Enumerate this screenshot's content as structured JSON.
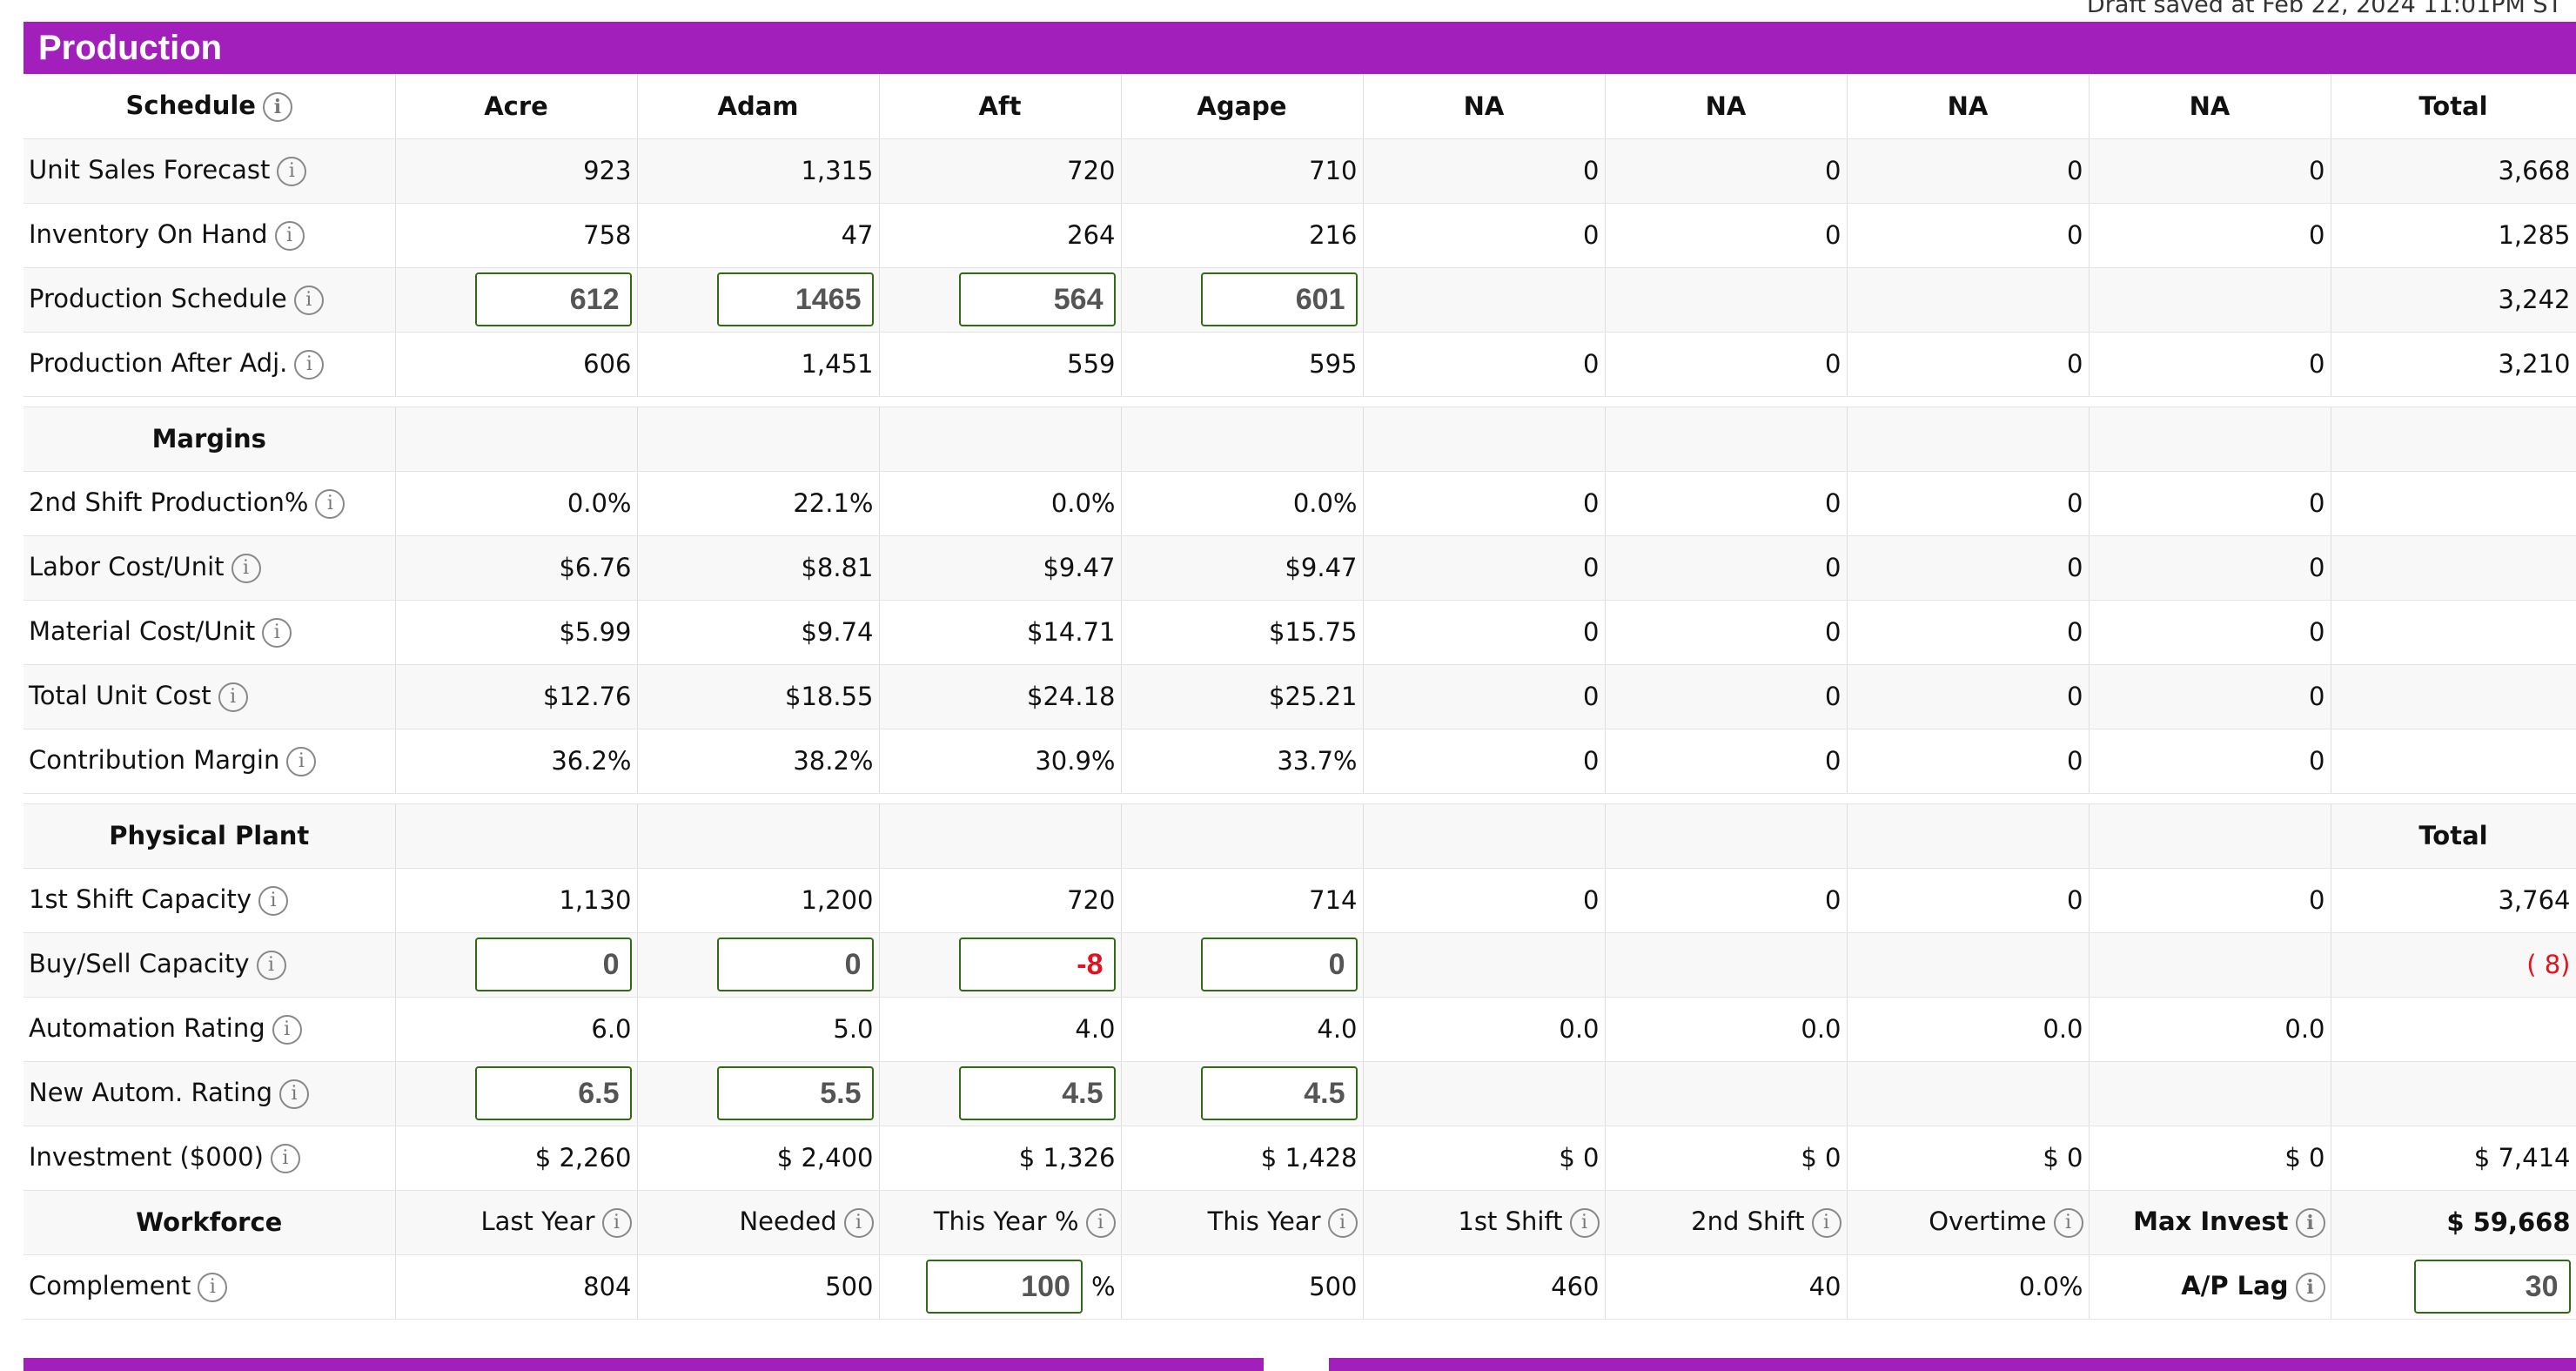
{
  "draft_status": "Draft saved at Feb 22, 2024 11:01PM ST",
  "section_title": "Production",
  "products": [
    "Acre",
    "Adam",
    "Aft",
    "Agape",
    "NA",
    "NA",
    "NA",
    "NA"
  ],
  "total_label": "Total",
  "schedule": {
    "header": "Schedule",
    "rows": [
      {
        "label": "Unit Sales Forecast",
        "values": [
          "923",
          "1,315",
          "720",
          "710",
          "0",
          "0",
          "0",
          "0"
        ],
        "total": "3,668"
      },
      {
        "label": "Inventory On Hand",
        "values": [
          "758",
          "47",
          "264",
          "216",
          "0",
          "0",
          "0",
          "0"
        ],
        "total": "1,285"
      },
      {
        "label": "Production Schedule",
        "inputs": [
          "612",
          "1465",
          "564",
          "601"
        ],
        "total": "3,242"
      },
      {
        "label": "Production After Adj.",
        "values": [
          "606",
          "1,451",
          "559",
          "595",
          "0",
          "0",
          "0",
          "0"
        ],
        "total": "3,210"
      }
    ]
  },
  "margins": {
    "header": "Margins",
    "rows": [
      {
        "label": "2nd Shift Production%",
        "values": [
          "0.0%",
          "22.1%",
          "0.0%",
          "0.0%",
          "0",
          "0",
          "0",
          "0"
        ]
      },
      {
        "label": "Labor Cost/Unit",
        "values": [
          "$6.76",
          "$8.81",
          "$9.47",
          "$9.47",
          "0",
          "0",
          "0",
          "0"
        ]
      },
      {
        "label": "Material Cost/Unit",
        "values": [
          "$5.99",
          "$9.74",
          "$14.71",
          "$15.75",
          "0",
          "0",
          "0",
          "0"
        ]
      },
      {
        "label": "Total Unit Cost",
        "values": [
          "$12.76",
          "$18.55",
          "$24.18",
          "$25.21",
          "0",
          "0",
          "0",
          "0"
        ]
      },
      {
        "label": "Contribution Margin",
        "values": [
          "36.2%",
          "38.2%",
          "30.9%",
          "33.7%",
          "0",
          "0",
          "0",
          "0"
        ]
      }
    ]
  },
  "plant": {
    "header": "Physical Plant",
    "total_header": "Total",
    "rows": [
      {
        "label": "1st Shift Capacity",
        "values": [
          "1,130",
          "1,200",
          "720",
          "714",
          "0",
          "0",
          "0",
          "0"
        ],
        "total": "3,764"
      },
      {
        "label": "Buy/Sell Capacity",
        "inputs": [
          "0",
          "0",
          "-8",
          "0"
        ],
        "total": "( 8)"
      },
      {
        "label": "Automation Rating",
        "values": [
          "6.0",
          "5.0",
          "4.0",
          "4.0",
          "0.0",
          "0.0",
          "0.0",
          "0.0"
        ],
        "total": ""
      },
      {
        "label": "New Autom. Rating",
        "inputs": [
          "6.5",
          "5.5",
          "4.5",
          "4.5"
        ],
        "total": ""
      },
      {
        "label": "Investment ($000)",
        "values": [
          "$ 2,260",
          "$ 2,400",
          "$ 1,326",
          "$ 1,428",
          "$ 0",
          "$ 0",
          "$ 0",
          "$ 0"
        ],
        "total": "$ 7,414"
      }
    ]
  },
  "workforce": {
    "header": "Workforce",
    "columns": [
      "Last Year",
      "Needed",
      "This Year %",
      "This Year",
      "1st Shift",
      "2nd Shift",
      "Overtime",
      "Max Invest"
    ],
    "max_invest_value": "$ 59,668",
    "complement_label": "Complement",
    "last_year": "804",
    "needed": "500",
    "this_year_pct": "100",
    "pct_symbol": "%",
    "this_year": "500",
    "first_shift": "460",
    "second_shift": "40",
    "overtime": "0.0%",
    "ap_lag_label": "A/P Lag",
    "ap_lag_value": "30"
  },
  "colors": {
    "accent": "#a21fbb",
    "input_border": "#2f6b12",
    "negative": "#e0141e"
  }
}
